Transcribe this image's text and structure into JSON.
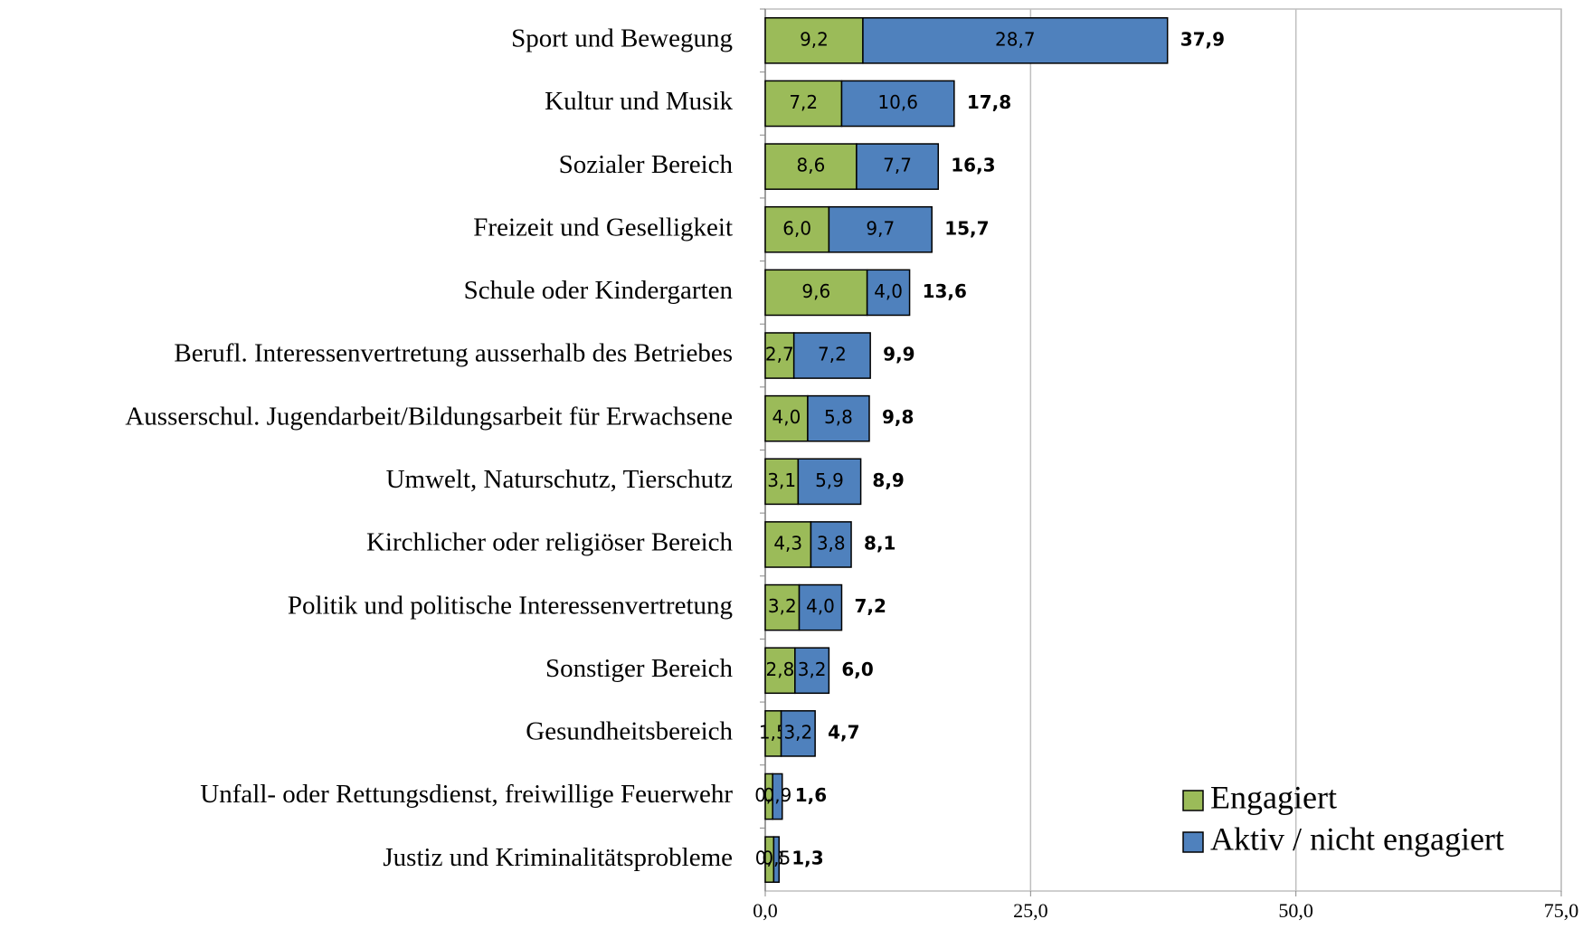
{
  "chart_data": {
    "type": "stacked_barh",
    "categories": [
      "Sport und Bewegung",
      "Kultur und Musik",
      "Sozialer Bereich",
      "Freizeit und Geselligkeit",
      "Schule oder Kindergarten",
      "Berufl. Interessenvertretung ausserhalb des Betriebes",
      "Ausserschul. Jugendarbeit/Bildungsarbeit für Erwachsene",
      "Umwelt, Naturschutz, Tierschutz",
      "Kirchlicher oder religiöser Bereich",
      "Politik und politische Interessenvertretung",
      "Sonstiger Bereich",
      "Gesundheitsbereich",
      "Unfall- oder Rettungsdienst, freiwillige Feuerwehr",
      "Justiz und Kriminalitätsprobleme"
    ],
    "series": [
      {
        "name": "Engagiert",
        "color": "#9bbb59",
        "values": [
          9.2,
          7.2,
          8.6,
          6.0,
          9.6,
          2.7,
          4.0,
          3.1,
          4.3,
          3.2,
          2.8,
          1.5,
          0.7,
          0.8
        ],
        "value_labels": [
          "9,2",
          "7,2",
          "8,6",
          "6,0",
          "9,6",
          "2,7",
          "4,0",
          "3,1",
          "4,3",
          "3,2",
          "2,8",
          "1,5",
          "0,7",
          "0,8"
        ]
      },
      {
        "name": "Aktiv / nicht engagiert",
        "color": "#4f81bd",
        "values": [
          28.7,
          10.6,
          7.7,
          9.7,
          4.0,
          7.2,
          5.8,
          5.9,
          3.8,
          4.0,
          3.2,
          3.2,
          0.9,
          0.5
        ],
        "value_labels": [
          "28,7",
          "10,6",
          "7,7",
          "9,7",
          "4,0",
          "7,2",
          "5,8",
          "5,9",
          "3,8",
          "4,0",
          "3,2",
          "3,2",
          "0,9",
          "0,5"
        ]
      }
    ],
    "totals": [
      37.9,
      17.8,
      16.3,
      15.7,
      13.6,
      9.9,
      9.8,
      8.9,
      8.1,
      7.2,
      6.0,
      4.7,
      1.6,
      1.3
    ],
    "total_labels": [
      "37,9",
      "17,8",
      "16,3",
      "15,7",
      "13,6",
      "9,9",
      "9,8",
      "8,9",
      "8,1",
      "7,2",
      "6,0",
      "4,7",
      "1,6",
      "1,3"
    ],
    "xlim": [
      0,
      75
    ],
    "xticks": [
      {
        "value": 0,
        "label": "0,0"
      },
      {
        "value": 25,
        "label": "25,0"
      },
      {
        "value": 50,
        "label": "50,0"
      },
      {
        "value": 75,
        "label": "75,0"
      }
    ],
    "grid": true,
    "legend": "lower right"
  }
}
